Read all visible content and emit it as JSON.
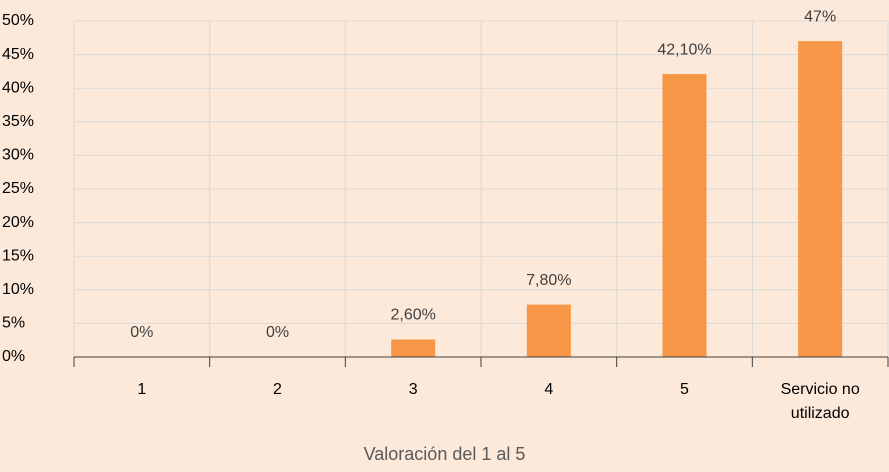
{
  "chart_data": {
    "type": "bar",
    "x_label": "Valoración del 1 al 5",
    "categories": [
      "1",
      "2",
      "3",
      "4",
      "5",
      "Servicio no utilizado"
    ],
    "values": [
      0,
      0,
      2.6,
      7.8,
      42.1,
      47
    ],
    "value_labels": [
      "0%",
      "0%",
      "2,60%",
      "7,80%",
      "42,10%",
      "47%"
    ],
    "color": "#f79646",
    "ylim": [
      0,
      50
    ],
    "yticks": [
      {
        "value": 0,
        "label": "0%"
      },
      {
        "value": 5,
        "label": "5%"
      },
      {
        "value": 10,
        "label": "10%"
      },
      {
        "value": 15,
        "label": "15%"
      },
      {
        "value": 20,
        "label": "20%"
      },
      {
        "value": 25,
        "label": "25%"
      },
      {
        "value": 30,
        "label": "30%"
      },
      {
        "value": 35,
        "label": "35%"
      },
      {
        "value": 40,
        "label": "40%"
      },
      {
        "value": 45,
        "label": "45%"
      },
      {
        "value": 50,
        "label": "50%"
      }
    ],
    "grid": true
  }
}
